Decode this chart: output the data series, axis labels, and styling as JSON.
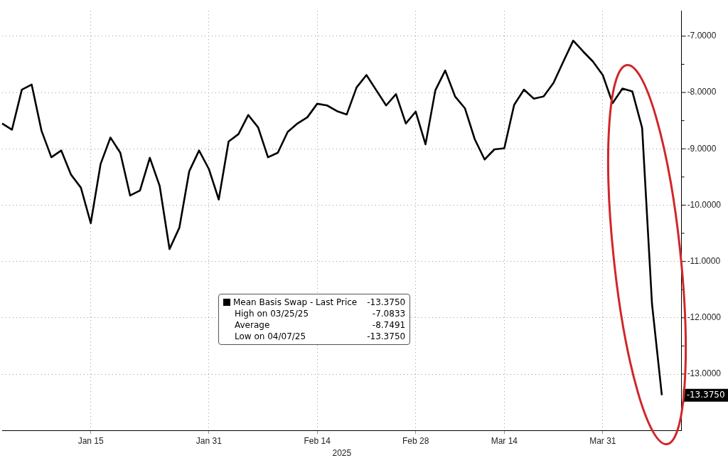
{
  "chart_data": {
    "type": "line",
    "categories": [
      null,
      null,
      null,
      null,
      null,
      null,
      null,
      null,
      null,
      "Jan 15",
      null,
      null,
      null,
      null,
      null,
      null,
      null,
      null,
      null,
      null,
      null,
      "Jan 31",
      null,
      null,
      null,
      null,
      null,
      null,
      null,
      null,
      null,
      null,
      "Feb 14",
      null,
      null,
      null,
      null,
      null,
      null,
      null,
      null,
      null,
      "Feb 28",
      null,
      null,
      null,
      null,
      null,
      null,
      null,
      null,
      "Mar 14",
      null,
      null,
      null,
      null,
      null,
      null,
      null,
      null,
      null,
      "Mar 31",
      null,
      null,
      null,
      null,
      null,
      null,
      null,
      null
    ],
    "xlabel": "2025",
    "series": [
      {
        "name": "Mean Basis Swap - Last Price",
        "color": "#000000",
        "values": [
          -8.55,
          -8.66,
          -7.95,
          -7.86,
          -8.68,
          -9.15,
          -9.03,
          -9.46,
          -9.69,
          -10.32,
          -9.27,
          -8.8,
          -9.07,
          -9.83,
          -9.74,
          -9.16,
          -9.66,
          -10.78,
          -10.4,
          -9.4,
          -9.03,
          -9.36,
          -9.9,
          -8.87,
          -8.74,
          -8.4,
          -8.62,
          -9.15,
          -9.07,
          -8.7,
          -8.55,
          -8.44,
          -8.2,
          -8.23,
          -8.33,
          -8.39,
          -7.91,
          -7.69,
          -7.96,
          -8.23,
          -8.03,
          -8.55,
          -8.34,
          -8.92,
          -7.96,
          -7.61,
          -8.07,
          -8.28,
          -8.83,
          -9.19,
          -9.01,
          -8.99,
          -8.22,
          -7.95,
          -8.11,
          -8.07,
          -7.83,
          -7.45,
          -7.08,
          -7.27,
          -7.45,
          -7.69,
          -8.19,
          -7.93,
          -7.98,
          -8.63,
          -11.75,
          -13.375,
          null,
          null
        ]
      }
    ],
    "ylim": [
      -14.0,
      -6.55
    ],
    "yticks": [
      {
        "value": -7,
        "label": "-7.0000"
      },
      {
        "value": -7.5,
        "label": null
      },
      {
        "value": -8,
        "label": "-8.0000"
      },
      {
        "value": -8.5,
        "label": null
      },
      {
        "value": -9,
        "label": "-9.0000"
      },
      {
        "value": -9.5,
        "label": null
      },
      {
        "value": -10,
        "label": "-10.0000"
      },
      {
        "value": -10.5,
        "label": null
      },
      {
        "value": -11,
        "label": "-11.0000"
      },
      {
        "value": -11.5,
        "label": null
      },
      {
        "value": -12,
        "label": "-12.0000"
      },
      {
        "value": -12.5,
        "label": null
      },
      {
        "value": -13,
        "label": "-13.0000"
      },
      {
        "value": -13.5,
        "label": null
      }
    ],
    "grid": true,
    "legend": "center",
    "marker": "none",
    "line_style": "solid",
    "annotations": [
      "-13.3750",
      "High on 03/25/25",
      "-7.0833",
      "Average",
      "-8.7491",
      "Low on 04/07/25",
      "-13.3750",
      "-13.3750"
    ]
  }
}
